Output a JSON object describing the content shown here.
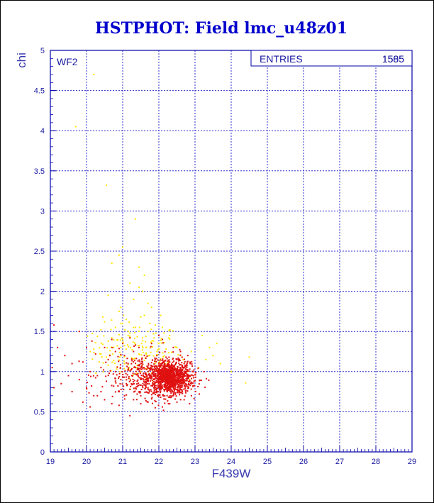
{
  "chart_data": {
    "type": "scatter",
    "title": "HSTPHOT: Field lmc_u48z01",
    "panel_label": "WF2",
    "xlabel": "F439W",
    "ylabel": "chi",
    "xlim": [
      19,
      29
    ],
    "ylim": [
      0,
      5
    ],
    "xticks": [
      "19",
      "20",
      "21",
      "22",
      "23",
      "24",
      "25",
      "26",
      "27",
      "28",
      "29"
    ],
    "yticks": [
      "0",
      "0.5",
      "1",
      "1.5",
      "2",
      "2.5",
      "3",
      "3.5",
      "4",
      "4.5",
      "5"
    ],
    "grid": true,
    "stats_box": {
      "label": "ENTRIES",
      "values": [
        "1585",
        "1505"
      ],
      "placement": "top-right"
    },
    "colors": {
      "title": "#0000cc",
      "axis": "#0000aa",
      "grid": "#2f2fcc",
      "series_yellow": "#ffe600",
      "series_red": "#e01010"
    },
    "series": [
      {
        "color": "#ffe600",
        "points": [
          [
            19.7,
            4.05
          ],
          [
            20.2,
            4.7
          ],
          [
            20.55,
            3.32
          ],
          [
            21.35,
            2.9
          ],
          [
            21.45,
            2.3
          ],
          [
            21.0,
            2.55
          ],
          [
            20.9,
            2.45
          ],
          [
            20.7,
            2.35
          ],
          [
            21.6,
            2.2
          ],
          [
            21.2,
            2.1
          ],
          [
            21.45,
            2.05
          ],
          [
            21.55,
            2.0
          ],
          [
            20.6,
            1.95
          ],
          [
            21.3,
            1.9
          ],
          [
            21.7,
            1.85
          ],
          [
            20.95,
            1.8
          ],
          [
            21.8,
            1.8
          ],
          [
            20.9,
            1.75
          ],
          [
            22.05,
            1.7
          ],
          [
            21.6,
            1.7
          ],
          [
            20.45,
            1.68
          ],
          [
            21.1,
            1.65
          ],
          [
            20.5,
            1.62
          ],
          [
            21.0,
            1.6
          ],
          [
            21.9,
            1.58
          ],
          [
            20.8,
            1.55
          ],
          [
            21.3,
            1.55
          ],
          [
            22.1,
            1.55
          ],
          [
            20.4,
            1.52
          ],
          [
            21.7,
            1.5
          ],
          [
            21.2,
            1.48
          ],
          [
            20.9,
            1.46
          ],
          [
            22.3,
            1.45
          ],
          [
            20.3,
            1.44
          ],
          [
            21.55,
            1.42
          ],
          [
            21.0,
            1.4
          ],
          [
            20.6,
            1.38
          ],
          [
            21.85,
            1.38
          ],
          [
            22.15,
            1.36
          ],
          [
            20.45,
            1.34
          ],
          [
            21.35,
            1.34
          ],
          [
            20.85,
            1.32
          ],
          [
            21.65,
            1.3
          ],
          [
            22.5,
            1.3
          ],
          [
            20.2,
            1.28
          ],
          [
            21.1,
            1.28
          ],
          [
            20.65,
            1.26
          ],
          [
            21.95,
            1.25
          ],
          [
            22.35,
            1.24
          ],
          [
            20.4,
            1.22
          ],
          [
            21.45,
            1.22
          ],
          [
            20.95,
            1.2
          ],
          [
            21.75,
            1.2
          ],
          [
            22.6,
            1.2
          ],
          [
            20.55,
            1.18
          ],
          [
            21.25,
            1.17
          ],
          [
            22.05,
            1.16
          ],
          [
            20.75,
            1.14
          ],
          [
            21.6,
            1.14
          ],
          [
            22.25,
            1.12
          ],
          [
            20.35,
            1.12
          ],
          [
            21.05,
            1.1
          ],
          [
            21.9,
            1.1
          ],
          [
            22.7,
            1.1
          ],
          [
            20.6,
            1.08
          ],
          [
            21.4,
            1.08
          ],
          [
            22.15,
            1.06
          ],
          [
            20.85,
            1.06
          ],
          [
            21.7,
            1.04
          ],
          [
            22.45,
            1.04
          ],
          [
            21.2,
            1.02
          ],
          [
            21.95,
            1.02
          ],
          [
            22.8,
            1.0
          ],
          [
            23.1,
            1.05
          ],
          [
            23.3,
            1.15
          ],
          [
            23.5,
            1.2
          ],
          [
            23.7,
            1.1
          ],
          [
            24.0,
            1.0
          ],
          [
            23.2,
            1.45
          ],
          [
            23.6,
            1.35
          ],
          [
            24.5,
            1.18
          ],
          [
            24.4,
            0.86
          ],
          [
            23.4,
            1.3
          ],
          [
            22.9,
            1.25
          ],
          [
            21.5,
            1.0
          ],
          [
            21.8,
            0.98
          ],
          [
            22.1,
            0.97
          ],
          [
            22.35,
            0.95
          ],
          [
            21.3,
            0.96
          ],
          [
            22.6,
            0.93
          ],
          [
            21.65,
            0.92
          ],
          [
            22.85,
            0.9
          ],
          [
            20.95,
            1.3
          ],
          [
            21.15,
            1.45
          ],
          [
            21.75,
            1.6
          ],
          [
            22.0,
            1.35
          ],
          [
            20.7,
            1.42
          ],
          [
            20.25,
            1.36
          ],
          [
            21.5,
            1.68
          ],
          [
            22.2,
            1.28
          ],
          [
            20.1,
            1.25
          ],
          [
            21.85,
            1.47
          ]
        ]
      },
      {
        "color": "#e01010",
        "points": [
          [
            21.2,
            0.45
          ],
          [
            20.1,
            0.56
          ],
          [
            19.9,
            0.62
          ],
          [
            20.3,
            0.7
          ],
          [
            19.6,
            0.75
          ],
          [
            19.1,
            0.8
          ],
          [
            19.3,
            0.85
          ],
          [
            19.5,
            0.95
          ],
          [
            19.05,
            1.05
          ],
          [
            19.2,
            1.3
          ],
          [
            19.1,
            1.58
          ],
          [
            19.8,
            1.5
          ],
          [
            19.4,
            1.2
          ],
          [
            19.6,
            1.1
          ],
          [
            19.8,
            0.9
          ],
          [
            20.0,
            0.8
          ],
          [
            20.2,
            0.7
          ],
          [
            20.5,
            0.65
          ],
          [
            20.7,
            0.6
          ],
          [
            20.9,
            0.58
          ],
          [
            21.05,
            0.7
          ],
          [
            21.3,
            0.65
          ],
          [
            21.5,
            0.6
          ],
          [
            21.7,
            0.62
          ],
          [
            21.9,
            0.55
          ],
          [
            22.1,
            0.56
          ],
          [
            22.3,
            0.6
          ],
          [
            22.5,
            0.62
          ],
          [
            22.7,
            0.65
          ],
          [
            22.85,
            0.6
          ],
          [
            22.9,
            0.7
          ],
          [
            20.4,
            1.05
          ],
          [
            20.6,
            1.15
          ],
          [
            20.8,
            1.0
          ],
          [
            20.3,
            0.95
          ],
          [
            20.55,
            0.88
          ],
          [
            20.75,
            0.82
          ],
          [
            20.95,
            0.9
          ],
          [
            21.1,
            0.85
          ],
          [
            21.25,
            0.95
          ],
          [
            21.4,
            0.88
          ],
          [
            21.55,
            0.82
          ],
          [
            21.7,
            0.78
          ],
          [
            21.85,
            0.74
          ],
          [
            21.15,
            1.1
          ],
          [
            21.35,
            1.05
          ],
          [
            21.55,
            1.12
          ],
          [
            21.75,
            1.02
          ],
          [
            21.95,
            0.95
          ],
          [
            21.05,
            1.2
          ],
          [
            21.3,
            1.25
          ],
          [
            21.6,
            1.2
          ],
          [
            21.9,
            1.15
          ],
          [
            20.25,
            1.22
          ],
          [
            20.5,
            1.3
          ],
          [
            20.8,
            1.25
          ],
          [
            21.0,
            1.35
          ],
          [
            21.45,
            1.3
          ],
          [
            20.15,
            1.38
          ],
          [
            20.7,
            1.4
          ],
          [
            21.2,
            1.42
          ],
          [
            20.1,
            1.0
          ],
          [
            19.9,
            1.12
          ],
          [
            20.0,
            1.3
          ],
          [
            20.4,
            0.75
          ],
          [
            20.9,
            0.75
          ],
          [
            21.4,
            0.72
          ],
          [
            22.05,
            0.68
          ],
          [
            22.4,
            0.7
          ],
          [
            22.65,
            0.75
          ],
          [
            22.0,
            1.1
          ],
          [
            22.3,
            1.05
          ],
          [
            22.55,
            1.02
          ],
          [
            22.75,
            0.98
          ],
          [
            22.2,
            1.18
          ],
          [
            22.5,
            1.15
          ],
          [
            22.7,
            1.1
          ],
          [
            22.9,
            0.85
          ],
          [
            22.95,
            0.95
          ],
          [
            22.8,
            1.2
          ],
          [
            22.6,
            1.25
          ],
          [
            22.4,
            1.3
          ],
          [
            22.1,
            1.4
          ],
          [
            21.8,
            1.35
          ],
          [
            22.0,
            1.45
          ],
          [
            21.2,
            0.78
          ],
          [
            21.5,
            0.7
          ],
          [
            21.8,
            0.66
          ],
          [
            22.0,
            0.82
          ],
          [
            22.25,
            0.8
          ],
          [
            22.45,
            0.78
          ],
          [
            22.6,
            0.85
          ],
          [
            22.75,
            0.82
          ],
          [
            22.15,
            0.9
          ],
          [
            22.35,
            0.88
          ],
          [
            22.55,
            0.9
          ],
          [
            22.2,
            1.0
          ],
          [
            22.4,
            0.98
          ],
          [
            22.6,
            0.95
          ],
          [
            22.3,
            1.12
          ]
        ]
      }
    ],
    "clusters": [
      {
        "color": "#e01010",
        "center": [
          22.3,
          0.92
        ],
        "spread": [
          0.3,
          0.1
        ],
        "count": 1100
      },
      {
        "color": "#e01010",
        "center": [
          21.6,
          0.95
        ],
        "spread": [
          0.6,
          0.14
        ],
        "count": 320
      },
      {
        "color": "#ffe600",
        "center": [
          21.4,
          1.25
        ],
        "spread": [
          0.6,
          0.18
        ],
        "count": 130
      }
    ]
  }
}
